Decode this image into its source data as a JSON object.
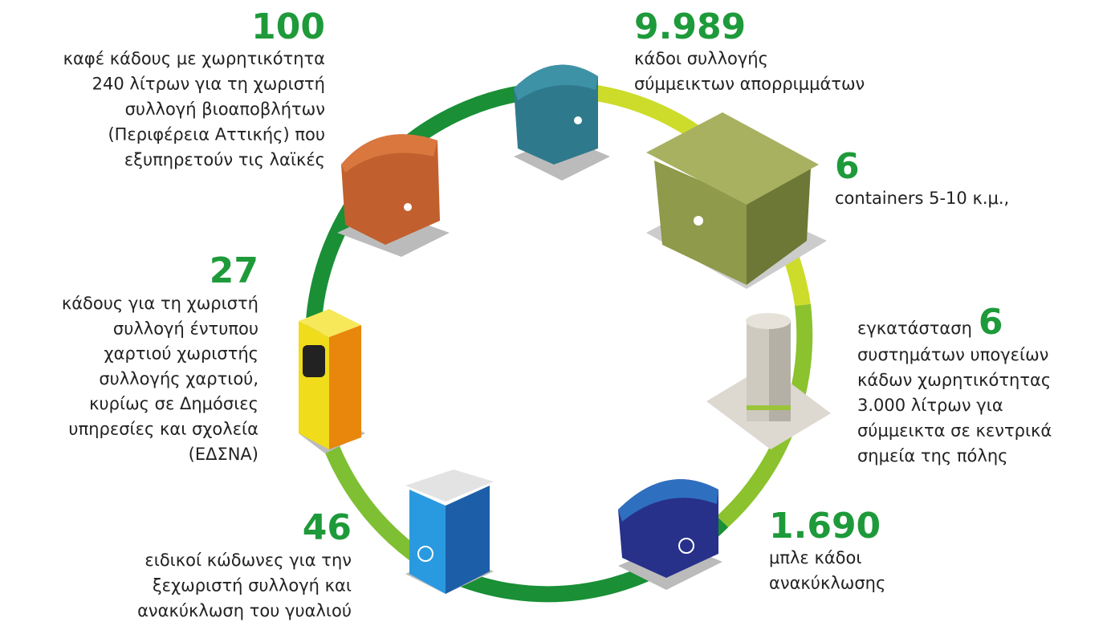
{
  "items": [
    {
      "number": "100",
      "lines": [
        "καφέ κάδους με χωρητικότητα",
        "240 λίτρων για τη χωριστή",
        "συλλογή βιοαποβλήτων",
        "(Περιφέρεια Αττικής) που",
        "εξυπηρετούν τις λαϊκές"
      ]
    },
    {
      "number": "9.989",
      "lines": [
        "κάδοι συλλογής",
        "σύμμεικτων απορριμμάτων"
      ]
    },
    {
      "number": "6",
      "lines": [
        "containers 5-10 κ.μ.,"
      ]
    },
    {
      "prefix": "εγκατάσταση",
      "number": "6",
      "lines": [
        "συστημάτων υπογείων",
        "κάδων χωρητικότητας",
        "3.000 λίτρων για",
        "σύμμεικτα σε κεντρικά",
        "σημεία της πόλης"
      ]
    },
    {
      "number": "1.690",
      "lines": [
        "μπλε κάδοι",
        "ανακύκλωσης"
      ]
    },
    {
      "number": "46",
      "lines": [
        "ειδικοί κώδωνες για την",
        "ξεχωριστή συλλογή και",
        "ανακύκλωση του γυαλιού"
      ]
    },
    {
      "number": "27",
      "lines": [
        "κάδους για τη χωριστή",
        "συλλογή έντυπου",
        "χαρτιού χωριστής",
        "συλλογής χαρτιού,",
        "κυρίως σε Δημόσιες",
        "υπηρεσίες και σχολεία",
        "(ΕΔΣΝΑ)"
      ]
    }
  ]
}
